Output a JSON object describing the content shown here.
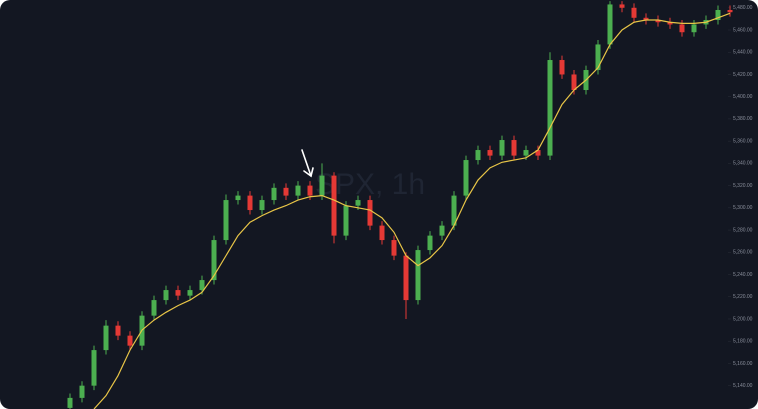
{
  "chart_data": {
    "type": "candlestick",
    "watermark": "SPX, 1h",
    "open": [
      5120,
      5129,
      5140,
      5172,
      5194,
      5185,
      5176,
      5203,
      5217,
      5226,
      5221,
      5226,
      5235,
      5271,
      5307,
      5311,
      5298,
      5307,
      5318,
      5311,
      5320,
      5311,
      5329,
      5275,
      5302,
      5307,
      5284,
      5271,
      5257,
      5217,
      5262,
      5275,
      5284,
      5311,
      5343,
      5352,
      5347,
      5361,
      5347,
      5352,
      5347,
      5433,
      5420,
      5406,
      5424,
      5447,
      5483,
      5480,
      5471,
      5469,
      5467,
      5465,
      5458,
      5465,
      5469,
      5478
    ],
    "high": [
      5133,
      5144,
      5176,
      5199,
      5198,
      5189,
      5207,
      5221,
      5230,
      5230,
      5230,
      5239,
      5275,
      5312,
      5315,
      5315,
      5311,
      5322,
      5322,
      5324,
      5324,
      5340,
      5332,
      5306,
      5311,
      5311,
      5288,
      5275,
      5260,
      5266,
      5279,
      5288,
      5315,
      5347,
      5356,
      5356,
      5365,
      5365,
      5356,
      5356,
      5440,
      5437,
      5424,
      5428,
      5451,
      5486,
      5486,
      5484,
      5475,
      5473,
      5471,
      5469,
      5469,
      5473,
      5482,
      5482
    ],
    "low": [
      5116,
      5125,
      5136,
      5168,
      5181,
      5172,
      5172,
      5199,
      5213,
      5217,
      5217,
      5222,
      5231,
      5267,
      5303,
      5294,
      5294,
      5303,
      5307,
      5307,
      5307,
      5307,
      5268,
      5271,
      5298,
      5280,
      5267,
      5253,
      5200,
      5213,
      5258,
      5271,
      5280,
      5307,
      5339,
      5343,
      5343,
      5343,
      5343,
      5343,
      5343,
      5416,
      5402,
      5402,
      5420,
      5443,
      5476,
      5467,
      5465,
      5463,
      5461,
      5454,
      5454,
      5461,
      5465,
      5472
    ],
    "close": [
      5129,
      5140,
      5172,
      5194,
      5185,
      5176,
      5203,
      5217,
      5226,
      5221,
      5226,
      5235,
      5271,
      5307,
      5311,
      5298,
      5307,
      5318,
      5311,
      5320,
      5311,
      5329,
      5275,
      5302,
      5307,
      5284,
      5271,
      5257,
      5217,
      5262,
      5275,
      5284,
      5311,
      5343,
      5352,
      5347,
      5361,
      5347,
      5352,
      5347,
      5433,
      5420,
      5406,
      5424,
      5447,
      5483,
      5480,
      5471,
      5469,
      5467,
      5465,
      5458,
      5465,
      5469,
      5478,
      5476
    ],
    "up_color": "#4caf50",
    "down_color": "#e53935",
    "ma": {
      "color": "#e8c547",
      "values": [
        null,
        null,
        5119,
        5131,
        5149,
        5172,
        5190,
        5199,
        5206,
        5212,
        5217,
        5224,
        5239,
        5257,
        5275,
        5287,
        5293,
        5298,
        5302,
        5307,
        5310,
        5311,
        5307,
        5302,
        5300,
        5298,
        5291,
        5278,
        5257,
        5248,
        5255,
        5266,
        5284,
        5307,
        5325,
        5336,
        5341,
        5343,
        5345,
        5352,
        5372,
        5393,
        5406,
        5415,
        5426,
        5447,
        5460,
        5467,
        5469,
        5469,
        5467,
        5466,
        5466,
        5467,
        5471,
        5475
      ]
    },
    "ylim": [
      5119,
      5487
    ],
    "yticks": [
      {
        "value": 5140,
        "label": "5,140.00"
      },
      {
        "value": 5160,
        "label": "5,160.00"
      },
      {
        "value": 5180,
        "label": "5,180.00"
      },
      {
        "value": 5200,
        "label": "5,200.00"
      },
      {
        "value": 5220,
        "label": "5,220.00"
      },
      {
        "value": 5240,
        "label": "5,240.00"
      },
      {
        "value": 5260,
        "label": "5,260.00"
      },
      {
        "value": 5280,
        "label": "5,280.00"
      },
      {
        "value": 5300,
        "label": "5,300.00"
      },
      {
        "value": 5320,
        "label": "5,320.00"
      },
      {
        "value": 5340,
        "label": "5,340.00"
      },
      {
        "value": 5360,
        "label": "5,360.00"
      },
      {
        "value": 5380,
        "label": "5,380.00"
      },
      {
        "value": 5400,
        "label": "5,400.00"
      },
      {
        "value": 5420,
        "label": "5,420.00"
      },
      {
        "value": 5440,
        "label": "5,440.00"
      },
      {
        "value": 5460,
        "label": "5,460.00"
      },
      {
        "value": 5480,
        "label": "5,480.00"
      }
    ]
  }
}
